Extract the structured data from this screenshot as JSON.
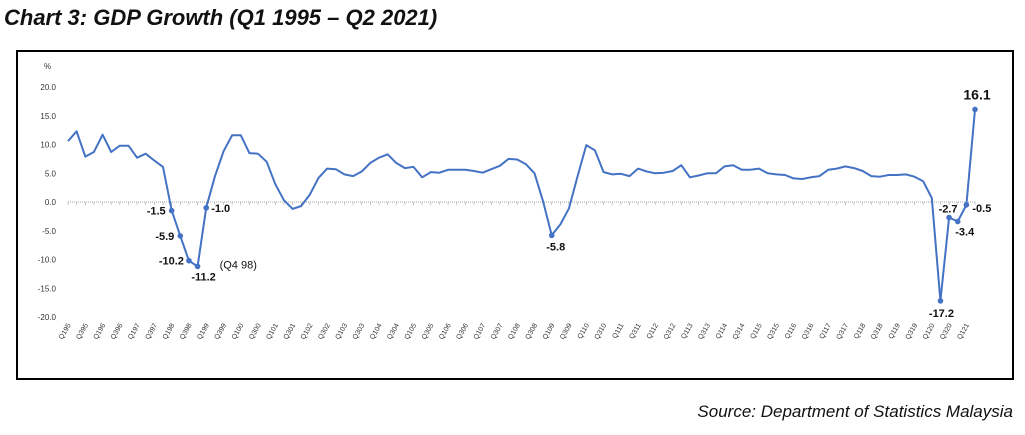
{
  "title": "Chart 3: GDP Growth (Q1 1995 – Q2 2021)",
  "source": "Source: Department of Statistics Malaysia",
  "colors": {
    "line": "#4472C4",
    "axis": "#A6A6A6",
    "text": "#111111"
  },
  "chart_data": {
    "type": "line",
    "title": "Chart 3: GDP Growth (Q1 1995 – Q2 2021)",
    "ylabel": "%",
    "ylim": [
      -20,
      20
    ],
    "yticks": [
      {
        "value": 20,
        "label": "20.0"
      },
      {
        "value": 15,
        "label": "15.0"
      },
      {
        "value": 10,
        "label": "10.0"
      },
      {
        "value": 5,
        "label": "5.0"
      },
      {
        "value": 0,
        "label": "0.0"
      },
      {
        "value": -5,
        "label": "-5.0"
      },
      {
        "value": -10,
        "label": "-10.0"
      },
      {
        "value": -15,
        "label": "-15.0"
      },
      {
        "value": -20,
        "label": "-20.0"
      }
    ],
    "grid": false,
    "x": [
      "Q1 95",
      "Q2 95",
      "Q3 95",
      "Q4 95",
      "Q1 96",
      "Q2 96",
      "Q3 96",
      "Q4 96",
      "Q1 97",
      "Q2 97",
      "Q3 97",
      "Q4 97",
      "Q1 98",
      "Q2 98",
      "Q3 98",
      "Q4 98",
      "Q1 99",
      "Q2 99",
      "Q3 99",
      "Q4 99",
      "Q1 00",
      "Q2 00",
      "Q3 00",
      "Q4 00",
      "Q1 01",
      "Q2 01",
      "Q3 01",
      "Q4 01",
      "Q1 02",
      "Q2 02",
      "Q3 02",
      "Q4 02",
      "Q1 03",
      "Q2 03",
      "Q3 03",
      "Q4 03",
      "Q1 04",
      "Q2 04",
      "Q3 04",
      "Q4 04",
      "Q1 05",
      "Q2 05",
      "Q3 05",
      "Q4 05",
      "Q1 06",
      "Q2 06",
      "Q3 06",
      "Q4 06",
      "Q1 07",
      "Q2 07",
      "Q3 07",
      "Q4 07",
      "Q1 08",
      "Q2 08",
      "Q3 08",
      "Q4 08",
      "Q1 09",
      "Q2 09",
      "Q3 09",
      "Q4 09",
      "Q1 10",
      "Q2 10",
      "Q3 10",
      "Q4 10",
      "Q1 11",
      "Q2 11",
      "Q3 11",
      "Q4 11",
      "Q1 12",
      "Q2 12",
      "Q3 12",
      "Q4 12",
      "Q1 13",
      "Q2 13",
      "Q3 13",
      "Q4 13",
      "Q1 14",
      "Q2 14",
      "Q3 14",
      "Q4 14",
      "Q1 15",
      "Q2 15",
      "Q3 15",
      "Q4 15",
      "Q1 16",
      "Q2 16",
      "Q3 16",
      "Q4 16",
      "Q1 17",
      "Q2 17",
      "Q3 17",
      "Q4 17",
      "Q1 18",
      "Q2 18",
      "Q3 18",
      "Q4 18",
      "Q1 19",
      "Q2 19",
      "Q3 19",
      "Q4 19",
      "Q1 20",
      "Q2 20",
      "Q3 20",
      "Q4 20",
      "Q1 21",
      "Q2 21"
    ],
    "xtick_labels": [
      "Q195",
      "Q395",
      "Q196",
      "Q396",
      "Q197",
      "Q397",
      "Q198",
      "Q398",
      "Q199",
      "Q399",
      "Q100",
      "Q300",
      "Q101",
      "Q301",
      "Q102",
      "Q302",
      "Q103",
      "Q303",
      "Q104",
      "Q304",
      "Q105",
      "Q305",
      "Q106",
      "Q306",
      "Q107",
      "Q307",
      "Q108",
      "Q308",
      "Q109",
      "Q309",
      "Q110",
      "Q310",
      "Q111",
      "Q311",
      "Q112",
      "Q312",
      "Q113",
      "Q313",
      "Q114",
      "Q314",
      "Q115",
      "Q315",
      "Q116",
      "Q316",
      "Q117",
      "Q317",
      "Q118",
      "Q318",
      "Q119",
      "Q319",
      "Q120",
      "Q320",
      "Q121"
    ],
    "series": [
      {
        "values": [
          10.6,
          12.3,
          7.9,
          8.7,
          11.7,
          8.7,
          9.8,
          9.8,
          7.7,
          8.4,
          7.2,
          6.1,
          -1.5,
          -5.9,
          -10.2,
          -11.2,
          -1.0,
          4.4,
          8.8,
          11.6,
          11.6,
          8.5,
          8.4,
          7.0,
          3.1,
          0.3,
          -1.2,
          -0.7,
          1.3,
          4.2,
          5.8,
          5.7,
          4.8,
          4.5,
          5.3,
          6.8,
          7.7,
          8.3,
          6.8,
          5.9,
          6.1,
          4.3,
          5.2,
          5.1,
          5.6,
          5.6,
          5.6,
          5.4,
          5.1,
          5.7,
          6.3,
          7.5,
          7.4,
          6.6,
          5.0,
          0.1,
          -5.8,
          -3.9,
          -1.1,
          4.5,
          9.9,
          9.0,
          5.2,
          4.8,
          4.9,
          4.5,
          5.8,
          5.3,
          5.0,
          5.1,
          5.4,
          6.4,
          4.3,
          4.6,
          5.0,
          5.0,
          6.2,
          6.4,
          5.6,
          5.6,
          5.8,
          5.0,
          4.8,
          4.7,
          4.1,
          4.0,
          4.3,
          4.5,
          5.6,
          5.8,
          6.2,
          5.9,
          5.4,
          4.5,
          4.4,
          4.7,
          4.7,
          4.8,
          4.4,
          3.6,
          0.7,
          -17.2,
          -2.7,
          -3.4,
          -0.5,
          16.1
        ]
      }
    ],
    "annotations": [
      {
        "x": "Q1 98",
        "value": -1.5,
        "label": "-1.5"
      },
      {
        "x": "Q2 98",
        "value": -5.9,
        "label": "-5.9"
      },
      {
        "x": "Q3 98",
        "value": -10.2,
        "label": "-10.2"
      },
      {
        "x": "Q4 98",
        "value": -11.2,
        "label": "-11.2",
        "note": "(Q4 98)"
      },
      {
        "x": "Q1 99",
        "value": -1.0,
        "label": "-1.0"
      },
      {
        "x": "Q1 09",
        "value": -5.8,
        "label": "-5.8"
      },
      {
        "x": "Q2 20",
        "value": -17.2,
        "label": "-17.2"
      },
      {
        "x": "Q3 20",
        "value": -2.7,
        "label": "-2.7"
      },
      {
        "x": "Q4 20",
        "value": -3.4,
        "label": "-3.4"
      },
      {
        "x": "Q1 21",
        "value": -0.5,
        "label": "-0.5"
      },
      {
        "x": "Q2 21",
        "value": 16.1,
        "label": "16.1"
      }
    ]
  }
}
